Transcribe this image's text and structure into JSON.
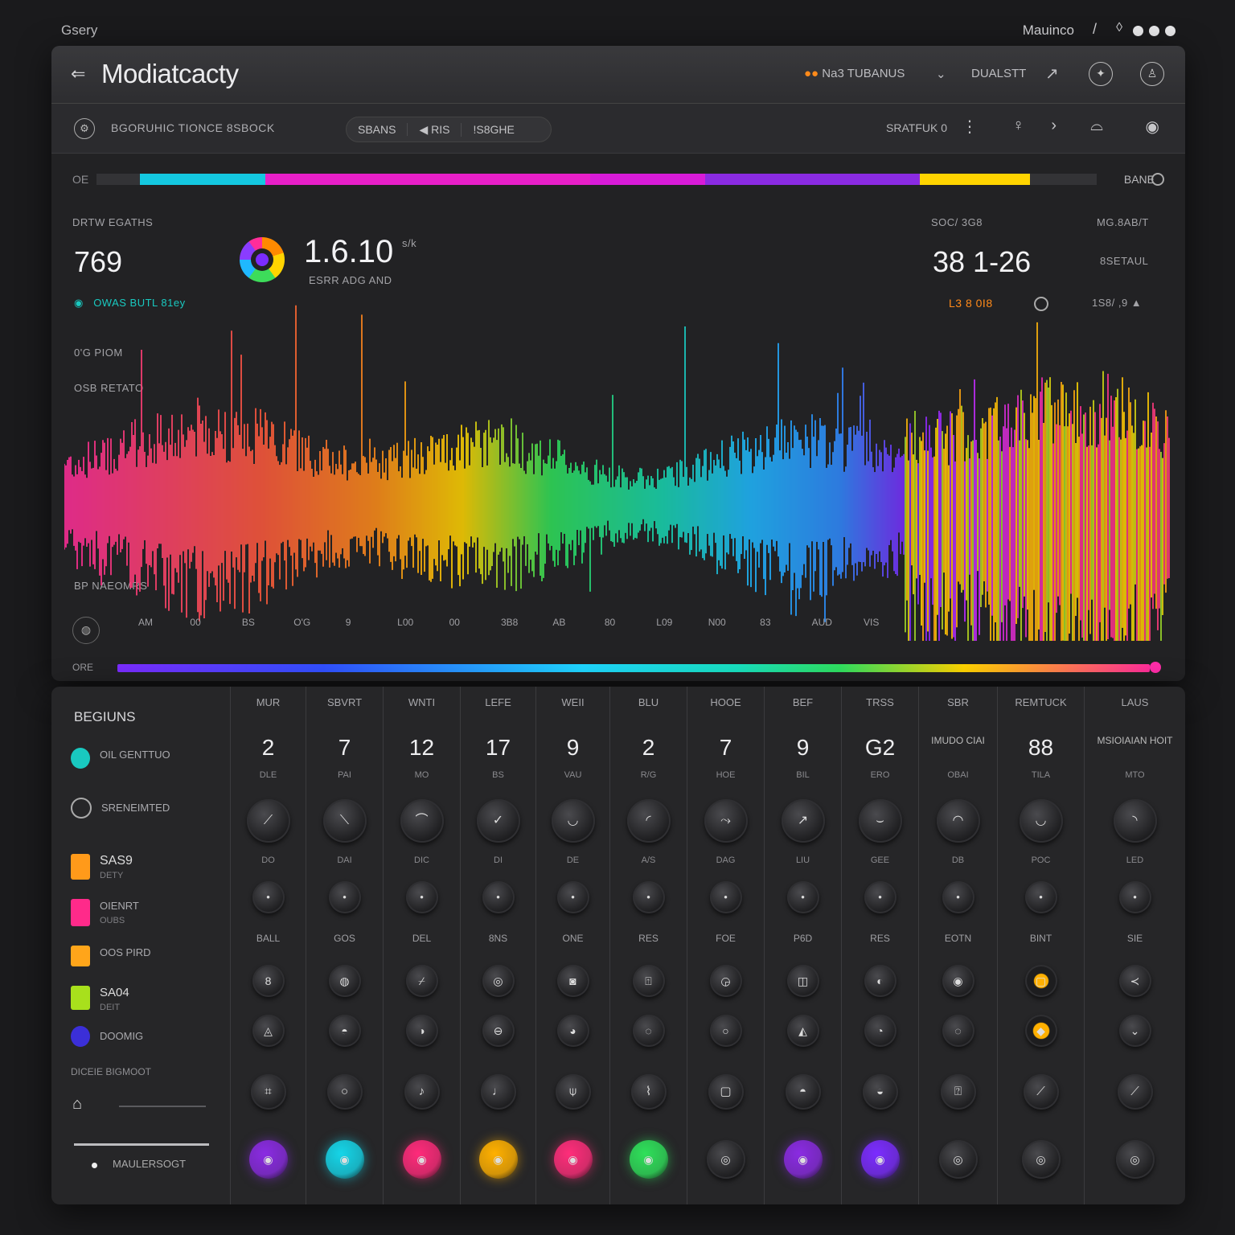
{
  "topbar": {
    "brand": "Gsery",
    "user": "Mauinco"
  },
  "app": {
    "title": "Modiatcacty",
    "header_right": [
      "Na3  TUBANUS",
      "DUALSTT"
    ],
    "toolbar_label": "BGORUHIC TIONCE 8SBOCK",
    "segments": [
      "SBANS",
      "◀  RIS",
      "!S8GHE"
    ],
    "status": "SRATFUK 0"
  },
  "progress": {
    "left_label": "OE",
    "right_label": "BANE",
    "segments": [
      {
        "color": "#14c8e0",
        "fraction": 0.125
      },
      {
        "color": "#e81fc8",
        "fraction": 0.325
      },
      {
        "color": "#d81bd8",
        "fraction": 0.115
      },
      {
        "color": "#8a2be2",
        "fraction": 0.215
      },
      {
        "color": "#ffd400",
        "fraction": 0.11
      }
    ]
  },
  "stats": {
    "left_label": "DRTW EGATHS",
    "left_value": "769",
    "center_value": "1.6.10",
    "center_unit": "s/k",
    "center_caption": "ESRR ADG AND",
    "legend_item": "OWAS BUTL 81ey",
    "right_label_1": "SOC/ 3G8",
    "right_value": "38  1-26",
    "right_label_2": "MG.8AB/T",
    "right_sub": "8SETAUL",
    "orange_text": "L3 8 0I8",
    "right_small": "1S8/ ,9 ▲",
    "side_label_1": "0'G PIOM",
    "side_label_2": "OSB  RETATO",
    "side_label_3": "BP NAEOMRS"
  },
  "axis_ticks": [
    "AM",
    "00",
    "BS",
    "O'G",
    "9",
    "L00",
    "00",
    "3B8",
    "AB",
    "80",
    "L09",
    "N00",
    "83",
    "AUD",
    "VIS"
  ],
  "spectrum": {
    "left_label": "ORE"
  },
  "sidebar": {
    "header": "BEGIUNS",
    "items": [
      {
        "label": "OIL GENTTUO",
        "sub": "",
        "color": "#19c9c0"
      },
      {
        "label": "SRENEIMTED",
        "sub": "",
        "color": ""
      },
      {
        "label": "SAS9",
        "sub": "DETY",
        "color": "#ff9a1a"
      },
      {
        "label": "OIENRT",
        "sub": "OUBS",
        "color": "#ff2a8a"
      },
      {
        "label": "OOS PIRD",
        "sub": "",
        "color": "#ffa51a"
      },
      {
        "label": "SA04",
        "sub": "DEIT",
        "color": "#a8e01c"
      },
      {
        "label": "DOOMIG",
        "sub": "",
        "color": "#3b2fd8"
      }
    ],
    "footer": "DICEIE BIGMOOT",
    "bottom": "MAULERSOGT"
  },
  "channels": [
    {
      "name": "MUR",
      "value": "2",
      "unit": "DLE",
      "lbl1": "DO",
      "lbl2": "BALL",
      "led": "#8a2be2"
    },
    {
      "name": "SBVRT",
      "value": "7",
      "unit": "PAI",
      "lbl1": "DAI",
      "lbl2": "GOS",
      "led": "#15d5e8"
    },
    {
      "name": "WNTI",
      "value": "12",
      "unit": "MO",
      "lbl1": "DIC",
      "lbl2": "DEL",
      "led": "#ff2a7a"
    },
    {
      "name": "LEFE",
      "value": "17",
      "unit": "BS",
      "lbl1": "DI",
      "lbl2": "8NS",
      "led": "#ffb000"
    },
    {
      "name": "WEII",
      "value": "9",
      "unit": "VAU",
      "lbl1": "DE",
      "lbl2": "ONE",
      "led": "#ff2d7a"
    },
    {
      "name": "BLU",
      "value": "2",
      "unit": "R/G",
      "lbl1": "A/S",
      "lbl2": "RES",
      "led": "#2fe05a"
    },
    {
      "name": "HOOE",
      "value": "7",
      "unit": "HOE",
      "lbl1": "DAG",
      "lbl2": "FOE",
      "led": ""
    },
    {
      "name": "BEF",
      "value": "9",
      "unit": "BIL",
      "lbl1": "LIU",
      "lbl2": "P6D",
      "led": "#8a2be2"
    },
    {
      "name": "TRSS",
      "value": "G2",
      "unit": "ERO",
      "lbl1": "GEE",
      "lbl2": "RES",
      "led": "#7b2cff"
    },
    {
      "name": "SBR",
      "value": "",
      "unit": "OBAI",
      "lbl1": "DB",
      "lbl2": "EOTN",
      "led": ""
    },
    {
      "name": "REMTUCK",
      "value": "88",
      "unit": "TILA",
      "lbl1": "POC",
      "lbl2": "BINT",
      "led": ""
    },
    {
      "name": "LAUS",
      "value": "",
      "unit": "MTO",
      "lbl1": "LED",
      "lbl2": "SIE",
      "led": ""
    }
  ],
  "channel_extra": {
    "9": "IMUDO CIAI",
    "11": "MSIOIAIAN HOIT"
  }
}
